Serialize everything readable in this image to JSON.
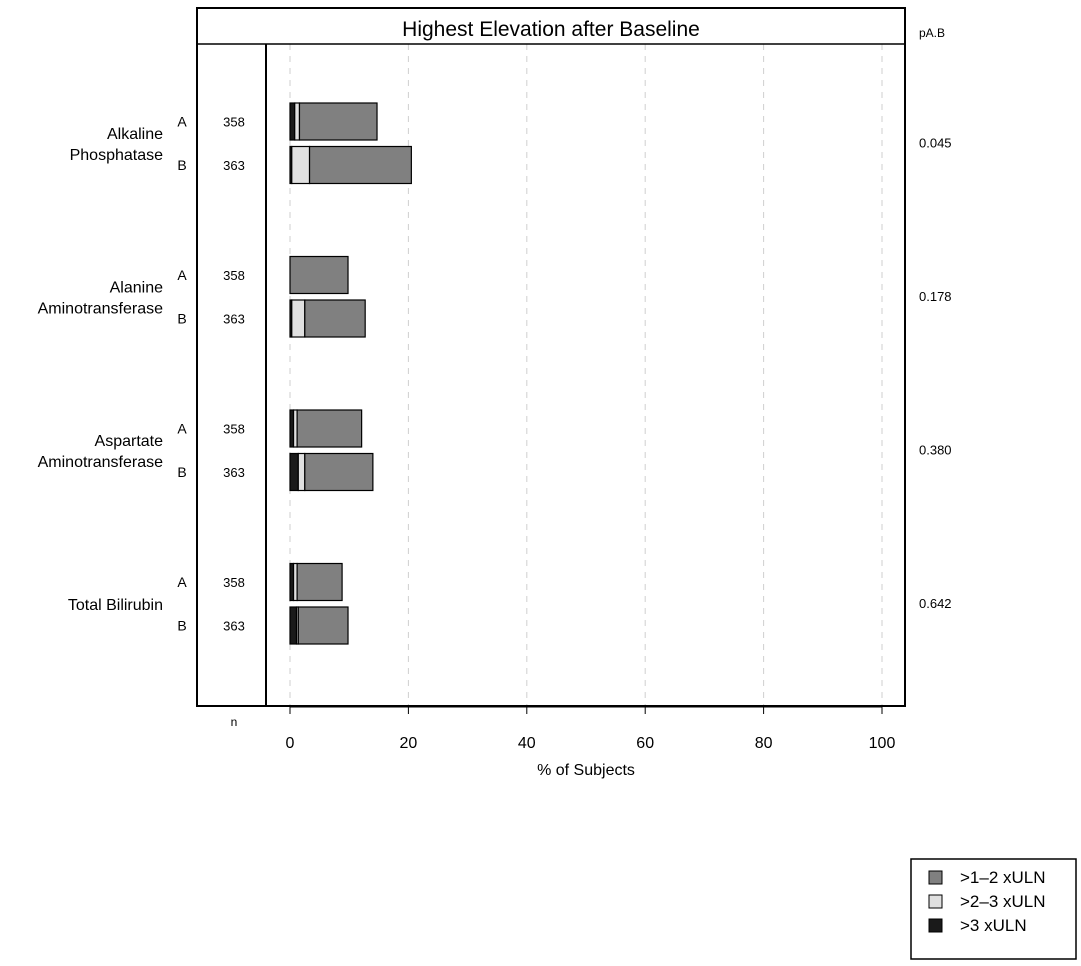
{
  "chart_data": {
    "type": "bar",
    "orientation": "horizontal",
    "stacked": true,
    "title": "Highest Elevation after Baseline",
    "xlabel": "% of Subjects",
    "xlim": [
      0,
      100
    ],
    "xticks": [
      0,
      20,
      40,
      60,
      80,
      100
    ],
    "grid": true,
    "n_label": "n",
    "p_header": "pA.B",
    "legend_position": "bottom-right",
    "series": [
      {
        "name": ">3 xULN",
        "color": "#1a1a1a"
      },
      {
        "name": ">2–3 xULN",
        "color": "#e0e0e0"
      },
      {
        "name": ">1–2 xULN",
        "color": "#808080"
      }
    ],
    "legend_order": [
      2,
      1,
      0
    ],
    "groups": [
      {
        "label_lines": [
          "Alkaline",
          "Phosphatase"
        ],
        "p_value": "0.045",
        "rows": [
          {
            "arm": "A",
            "n": "358",
            "values": [
              0.8,
              0.8,
              13.1
            ]
          },
          {
            "arm": "B",
            "n": "363",
            "values": [
              0.3,
              3.0,
              17.2
            ]
          }
        ]
      },
      {
        "label_lines": [
          "Alanine",
          "Aminotransferase"
        ],
        "p_value": "0.178",
        "rows": [
          {
            "arm": "A",
            "n": "358",
            "values": [
              0.0,
              0.0,
              9.8
            ]
          },
          {
            "arm": "B",
            "n": "363",
            "values": [
              0.3,
              2.2,
              10.2
            ]
          }
        ]
      },
      {
        "label_lines": [
          "Aspartate",
          "Aminotransferase"
        ],
        "p_value": "0.380",
        "rows": [
          {
            "arm": "A",
            "n": "358",
            "values": [
              0.6,
              0.6,
              10.9
            ]
          },
          {
            "arm": "B",
            "n": "363",
            "values": [
              1.4,
              1.1,
              11.5
            ]
          }
        ]
      },
      {
        "label_lines": [
          "Total Bilirubin"
        ],
        "p_value": "0.642",
        "rows": [
          {
            "arm": "A",
            "n": "358",
            "values": [
              0.6,
              0.6,
              7.6
            ]
          },
          {
            "arm": "B",
            "n": "363",
            "values": [
              1.1,
              0.3,
              8.4
            ]
          }
        ]
      }
    ]
  }
}
